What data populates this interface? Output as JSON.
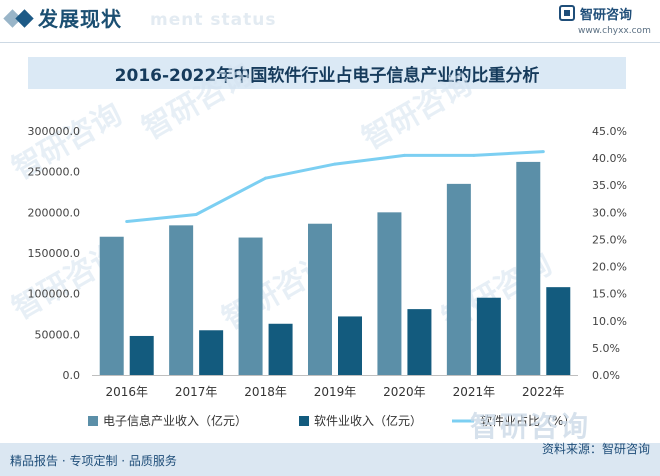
{
  "header": {
    "section_title": "发展现状",
    "ghost_en": "ment status",
    "logo_name": "智研咨询",
    "logo_url": "www.chyxx.com"
  },
  "watermark_text": "智研咨询",
  "footer": {
    "left": "精品报告 · 专项定制 · 品质服务",
    "source": "资料来源：智研咨询"
  },
  "colors": {
    "electronic_revenue_bar": "#5b8fa8",
    "software_revenue_bar": "#135b7e",
    "software_share_line": "#7ccff2",
    "brand": "#1f4e79"
  },
  "chart_data": {
    "type": "bar",
    "title": "2016-2022年中国软件行业占电子信息产业的比重分析",
    "categories": [
      "2016年",
      "2017年",
      "2018年",
      "2019年",
      "2020年",
      "2021年",
      "2022年"
    ],
    "series": [
      {
        "name": "电子信息产业收入（亿元）",
        "type": "bar",
        "axis": "left",
        "values": [
          170000,
          184000,
          169000,
          186000,
          200000,
          235000,
          262000
        ]
      },
      {
        "name": "软件业收入（亿元）",
        "type": "bar",
        "axis": "left",
        "values": [
          48000,
          55000,
          63000,
          72000,
          81000,
          95000,
          108000
        ]
      },
      {
        "name": "软件业占比（%）",
        "type": "line",
        "axis": "right",
        "values": [
          28.3,
          29.6,
          36.3,
          38.9,
          40.5,
          40.5,
          41.2
        ]
      }
    ],
    "y_left": {
      "ylim": [
        0,
        300000
      ],
      "ticks": [
        "0.0",
        "50000.0",
        "100000.0",
        "150000.0",
        "200000.0",
        "250000.0",
        "300000.0"
      ]
    },
    "y_right": {
      "ylim": [
        0,
        45
      ],
      "ticks": [
        "0.0%",
        "5.0%",
        "10.0%",
        "15.0%",
        "20.0%",
        "25.0%",
        "30.0%",
        "35.0%",
        "40.0%",
        "45.0%"
      ]
    },
    "grid": false,
    "legend_position": "bottom"
  }
}
